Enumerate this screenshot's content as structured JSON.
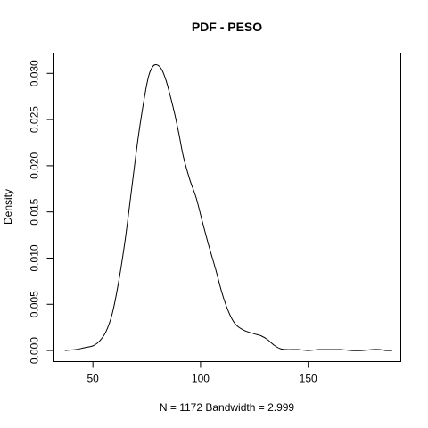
{
  "chart_data": {
    "type": "line",
    "title": "PDF - PESO",
    "xlabel": "N = 1172   Bandwidth = 2.999",
    "ylabel": "Density",
    "xlim": [
      31.5,
      193.0
    ],
    "ylim": [
      -0.0012,
      0.0322
    ],
    "x_ticks": [
      50,
      100,
      150
    ],
    "x_tick_labels": [
      "50",
      "100",
      "150"
    ],
    "y_ticks": [
      0.0,
      0.005,
      0.01,
      0.015,
      0.02,
      0.025,
      0.03
    ],
    "y_tick_labels": [
      "0.000",
      "0.005",
      "0.010",
      "0.015",
      "0.020",
      "0.025",
      "0.030"
    ],
    "grid": false,
    "legend": "none",
    "series": [
      {
        "x": [
          37,
          42,
          46,
          50,
          53,
          56,
          59,
          62,
          65,
          68,
          71,
          74,
          76,
          78,
          80,
          82,
          84,
          86,
          88,
          90,
          92,
          95,
          98,
          101,
          104,
          107,
          110,
          113,
          116,
          120,
          125,
          128,
          131,
          134,
          137,
          140,
          145,
          150,
          155,
          160,
          165,
          170,
          175,
          180,
          183,
          186,
          189
        ],
        "y": [
          0.0,
          0.0001,
          0.0003,
          0.0005,
          0.001,
          0.002,
          0.004,
          0.0075,
          0.012,
          0.0175,
          0.023,
          0.0275,
          0.0298,
          0.0308,
          0.0309,
          0.0304,
          0.0292,
          0.0275,
          0.0256,
          0.0234,
          0.021,
          0.0185,
          0.0165,
          0.0138,
          0.0112,
          0.0088,
          0.0062,
          0.0042,
          0.0029,
          0.0022,
          0.0018,
          0.0016,
          0.0012,
          0.0006,
          0.0002,
          0.0001,
          0.0001,
          0.0,
          0.0001,
          0.0001,
          0.0001,
          0.0,
          0.0,
          0.0001,
          0.0001,
          0.0,
          0.0
        ]
      }
    ]
  }
}
